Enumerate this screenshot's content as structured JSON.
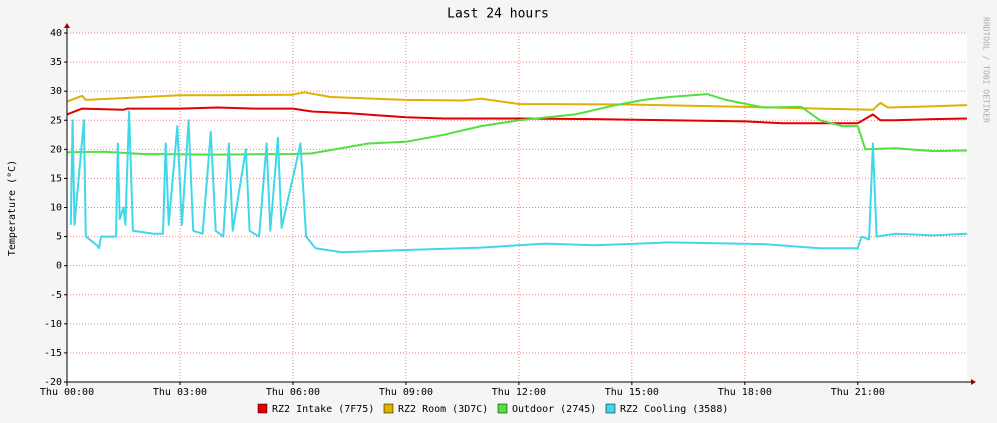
{
  "chart_data": {
    "type": "line",
    "title": "Last 24 hours",
    "y_label": "Temperature (°C)",
    "watermark": "RRDTOOL / TOBI OETIKER",
    "xlim": [
      0,
      23.9
    ],
    "xticks": [
      {
        "value": 0,
        "label": "Thu 00:00"
      },
      {
        "value": 3,
        "label": "Thu 03:00"
      },
      {
        "value": 6,
        "label": "Thu 06:00"
      },
      {
        "value": 9,
        "label": "Thu 09:00"
      },
      {
        "value": 12,
        "label": "Thu 12:00"
      },
      {
        "value": 15,
        "label": "Thu 15:00"
      },
      {
        "value": 18,
        "label": "Thu 18:00"
      },
      {
        "value": 21,
        "label": "Thu 21:00"
      }
    ],
    "ylim": [
      -20,
      40
    ],
    "yticks": [
      -20,
      -15,
      -10,
      -5,
      0,
      5,
      10,
      15,
      20,
      25,
      30,
      35,
      40
    ],
    "grid": true,
    "series": [
      {
        "name": "RZ2 Intake (7F75)",
        "color": "#e00000",
        "x": [
          0,
          0.4,
          1.5,
          1.6,
          3,
          4,
          5,
          6,
          6.5,
          7.5,
          9,
          10,
          12,
          14,
          16,
          18,
          19,
          21,
          21.4,
          21.6,
          22,
          23,
          23.9
        ],
        "values": [
          26,
          27,
          26.8,
          27,
          27,
          27.2,
          27,
          27,
          26.5,
          26.2,
          25.5,
          25.3,
          25.3,
          25.2,
          25,
          24.8,
          24.5,
          24.5,
          26,
          25,
          25,
          25.2,
          25.3
        ]
      },
      {
        "name": "RZ2 Room (3D7C)",
        "color": "#e0b000",
        "x": [
          0,
          0.4,
          0.5,
          1.5,
          3,
          4,
          6,
          6.3,
          7,
          9,
          10.5,
          11,
          12,
          15,
          18,
          20,
          21.4,
          21.6,
          21.8,
          23,
          23.9
        ],
        "values": [
          28.2,
          29.2,
          28.5,
          28.8,
          29.3,
          29.3,
          29.4,
          29.8,
          29,
          28.5,
          28.4,
          28.7,
          27.8,
          27.7,
          27.3,
          27,
          26.8,
          28,
          27.2,
          27.4,
          27.6
        ]
      },
      {
        "name": "Outdoor (2745)",
        "color": "#50e040",
        "x": [
          0,
          1,
          2,
          4,
          6,
          6.5,
          8,
          9,
          10,
          11,
          12,
          13.5,
          14.5,
          15.3,
          16,
          17,
          17.5,
          18.5,
          19.5,
          20,
          20.6,
          21,
          21.2,
          22,
          23,
          23.9
        ],
        "values": [
          19.5,
          19.6,
          19.2,
          19.1,
          19.2,
          19.3,
          21,
          21.3,
          22.5,
          24,
          25,
          26,
          27.5,
          28.5,
          29,
          29.5,
          28.5,
          27.2,
          27.3,
          25,
          24,
          24,
          20,
          20.2,
          19.7,
          19.8
        ]
      },
      {
        "name": "RZ2 Cooling (3588)",
        "color": "#40d8e8",
        "x": [
          0.1,
          0.15,
          0.2,
          0.45,
          0.5,
          0.8,
          0.85,
          0.9,
          1.3,
          1.35,
          1.4,
          1.5,
          1.55,
          1.65,
          1.75,
          2.3,
          2.55,
          2.62,
          2.7,
          2.93,
          3.05,
          3.23,
          3.35,
          3.6,
          3.82,
          3.95,
          4.15,
          4.3,
          4.4,
          4.75,
          4.85,
          5.1,
          5.3,
          5.4,
          5.6,
          5.7,
          6.2,
          6.35,
          6.6,
          7.3,
          9,
          11,
          12.7,
          14,
          16,
          18.5,
          20,
          21,
          21.1,
          21.3,
          21.4,
          21.5,
          22,
          23,
          23.9
        ],
        "values": [
          7,
          25,
          7,
          25,
          5,
          3.5,
          3,
          5,
          5,
          21,
          8,
          10,
          7,
          26.5,
          6,
          5.5,
          5.5,
          21,
          7,
          24,
          7,
          25,
          6,
          5.5,
          23,
          6,
          5,
          21,
          6,
          20,
          6,
          5,
          21,
          6,
          22,
          6.5,
          21,
          5,
          3,
          2.3,
          2.7,
          3.1,
          3.8,
          3.5,
          4,
          3.7,
          3,
          3,
          5,
          4.5,
          21,
          5,
          5.5,
          5.2,
          5.5
        ]
      }
    ]
  }
}
